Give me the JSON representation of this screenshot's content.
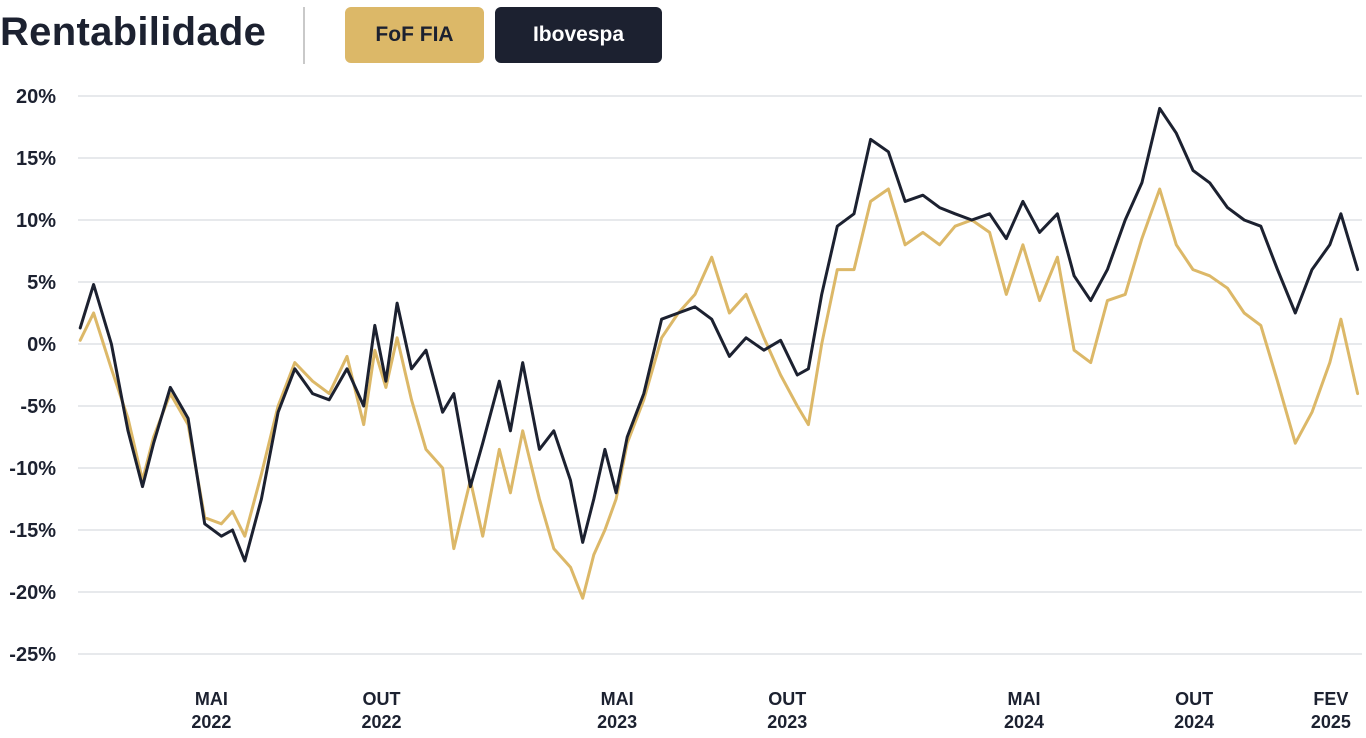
{
  "header": {
    "title": "Rentabilidade",
    "buttons": [
      {
        "label": "FoF FIA",
        "color": "#dcb868",
        "text_color": "#1c2130"
      },
      {
        "label": "Ibovespa",
        "color": "#1c2130",
        "text_color": "#ffffff"
      }
    ]
  },
  "chart_data": {
    "type": "line",
    "title": "Rentabilidade",
    "xlabel": "",
    "ylabel": "",
    "ylim": [
      -25,
      20
    ],
    "xlim": [
      "2022-01-01",
      "2025-03-01"
    ],
    "grid": true,
    "legend": "top-left",
    "y_ticks": [
      "20%",
      "15%",
      "10%",
      "5%",
      "0%",
      "-5%",
      "-10%",
      "-15%",
      "-20%",
      "-25%"
    ],
    "y_tick_values": [
      20,
      15,
      10,
      5,
      0,
      -5,
      -10,
      -15,
      -20,
      -25
    ],
    "x_ticks": [
      {
        "month": "MAI",
        "year": "2022",
        "date": "2022-05-01"
      },
      {
        "month": "OUT",
        "year": "2022",
        "date": "2022-10-01"
      },
      {
        "month": "MAI",
        "year": "2023",
        "date": "2023-05-01"
      },
      {
        "month": "OUT",
        "year": "2023",
        "date": "2023-10-01"
      },
      {
        "month": "MAI",
        "year": "2024",
        "date": "2024-05-01"
      },
      {
        "month": "OUT",
        "year": "2024",
        "date": "2024-10-01"
      },
      {
        "month": "FEV",
        "year": "2025",
        "date": "2025-02-01"
      }
    ],
    "series": [
      {
        "name": "Ibovespa",
        "color": "#1c2130",
        "points": [
          [
            "2022-01-03",
            1.3
          ],
          [
            "2022-01-15",
            4.8
          ],
          [
            "2022-01-31",
            0.0
          ],
          [
            "2022-02-15",
            -7.0
          ],
          [
            "2022-02-28",
            -11.5
          ],
          [
            "2022-03-10",
            -8.0
          ],
          [
            "2022-03-25",
            -3.5
          ],
          [
            "2022-04-10",
            -6.0
          ],
          [
            "2022-04-25",
            -14.5
          ],
          [
            "2022-05-10",
            -15.5
          ],
          [
            "2022-05-20",
            -15.0
          ],
          [
            "2022-05-31",
            -17.5
          ],
          [
            "2022-06-15",
            -12.5
          ],
          [
            "2022-06-30",
            -5.5
          ],
          [
            "2022-07-15",
            -2.0
          ],
          [
            "2022-07-31",
            -4.0
          ],
          [
            "2022-08-15",
            -4.5
          ],
          [
            "2022-08-31",
            -2.0
          ],
          [
            "2022-09-15",
            -5.0
          ],
          [
            "2022-09-25",
            1.5
          ],
          [
            "2022-10-05",
            -3.0
          ],
          [
            "2022-10-15",
            3.3
          ],
          [
            "2022-10-28",
            -2.0
          ],
          [
            "2022-11-10",
            -0.5
          ],
          [
            "2022-11-25",
            -5.5
          ],
          [
            "2022-12-05",
            -4.0
          ],
          [
            "2022-12-20",
            -11.5
          ],
          [
            "2022-12-31",
            -8.0
          ],
          [
            "2023-01-15",
            -3.0
          ],
          [
            "2023-01-25",
            -7.0
          ],
          [
            "2023-02-05",
            -1.5
          ],
          [
            "2023-02-20",
            -8.5
          ],
          [
            "2023-03-05",
            -7.0
          ],
          [
            "2023-03-20",
            -11.0
          ],
          [
            "2023-03-31",
            -16.0
          ],
          [
            "2023-04-10",
            -12.5
          ],
          [
            "2023-04-20",
            -8.5
          ],
          [
            "2023-04-30",
            -12.0
          ],
          [
            "2023-05-10",
            -7.5
          ],
          [
            "2023-05-25",
            -4.0
          ],
          [
            "2023-06-10",
            2.0
          ],
          [
            "2023-06-25",
            2.5
          ],
          [
            "2023-07-10",
            3.0
          ],
          [
            "2023-07-25",
            2.0
          ],
          [
            "2023-08-10",
            -1.0
          ],
          [
            "2023-08-25",
            0.5
          ],
          [
            "2023-09-10",
            -0.5
          ],
          [
            "2023-09-25",
            0.3
          ],
          [
            "2023-10-10",
            -2.5
          ],
          [
            "2023-10-20",
            -2.0
          ],
          [
            "2023-11-01",
            4.0
          ],
          [
            "2023-11-15",
            9.5
          ],
          [
            "2023-11-30",
            10.5
          ],
          [
            "2023-12-15",
            16.5
          ],
          [
            "2023-12-31",
            15.5
          ],
          [
            "2024-01-15",
            11.5
          ],
          [
            "2024-01-31",
            12.0
          ],
          [
            "2024-02-15",
            11.0
          ],
          [
            "2024-02-29",
            10.5
          ],
          [
            "2024-03-15",
            10.0
          ],
          [
            "2024-03-31",
            10.5
          ],
          [
            "2024-04-15",
            8.5
          ],
          [
            "2024-04-30",
            11.5
          ],
          [
            "2024-05-15",
            9.0
          ],
          [
            "2024-05-31",
            10.5
          ],
          [
            "2024-06-15",
            5.5
          ],
          [
            "2024-06-30",
            3.5
          ],
          [
            "2024-07-15",
            6.0
          ],
          [
            "2024-07-31",
            10.0
          ],
          [
            "2024-08-15",
            13.0
          ],
          [
            "2024-08-31",
            19.0
          ],
          [
            "2024-09-15",
            17.0
          ],
          [
            "2024-09-30",
            14.0
          ],
          [
            "2024-10-15",
            13.0
          ],
          [
            "2024-10-31",
            11.0
          ],
          [
            "2024-11-15",
            10.0
          ],
          [
            "2024-11-30",
            9.5
          ],
          [
            "2024-12-15",
            6.0
          ],
          [
            "2024-12-31",
            2.5
          ],
          [
            "2025-01-15",
            6.0
          ],
          [
            "2025-01-31",
            8.0
          ],
          [
            "2025-02-10",
            10.5
          ],
          [
            "2025-02-25",
            6.0
          ]
        ]
      },
      {
        "name": "FoF FIA",
        "color": "#dcb868",
        "points": [
          [
            "2022-01-03",
            0.3
          ],
          [
            "2022-01-15",
            2.5
          ],
          [
            "2022-01-31",
            -2.0
          ],
          [
            "2022-02-15",
            -6.0
          ],
          [
            "2022-02-28",
            -11.0
          ],
          [
            "2022-03-10",
            -7.5
          ],
          [
            "2022-03-25",
            -4.0
          ],
          [
            "2022-04-10",
            -6.5
          ],
          [
            "2022-04-25",
            -14.0
          ],
          [
            "2022-05-10",
            -14.5
          ],
          [
            "2022-05-20",
            -13.5
          ],
          [
            "2022-05-31",
            -15.5
          ],
          [
            "2022-06-15",
            -10.5
          ],
          [
            "2022-06-30",
            -5.0
          ],
          [
            "2022-07-15",
            -1.5
          ],
          [
            "2022-07-31",
            -3.0
          ],
          [
            "2022-08-15",
            -4.0
          ],
          [
            "2022-08-31",
            -1.0
          ],
          [
            "2022-09-15",
            -6.5
          ],
          [
            "2022-09-25",
            -0.5
          ],
          [
            "2022-10-05",
            -3.5
          ],
          [
            "2022-10-15",
            0.5
          ],
          [
            "2022-10-28",
            -4.5
          ],
          [
            "2022-11-10",
            -8.5
          ],
          [
            "2022-11-25",
            -10.0
          ],
          [
            "2022-12-05",
            -16.5
          ],
          [
            "2022-12-20",
            -11.0
          ],
          [
            "2022-12-31",
            -15.5
          ],
          [
            "2023-01-15",
            -8.5
          ],
          [
            "2023-01-25",
            -12.0
          ],
          [
            "2023-02-05",
            -7.0
          ],
          [
            "2023-02-20",
            -12.5
          ],
          [
            "2023-03-05",
            -16.5
          ],
          [
            "2023-03-20",
            -18.0
          ],
          [
            "2023-03-31",
            -20.5
          ],
          [
            "2023-04-10",
            -17.0
          ],
          [
            "2023-04-20",
            -15.0
          ],
          [
            "2023-04-30",
            -12.5
          ],
          [
            "2023-05-10",
            -8.0
          ],
          [
            "2023-05-25",
            -4.5
          ],
          [
            "2023-06-10",
            0.5
          ],
          [
            "2023-06-25",
            2.5
          ],
          [
            "2023-07-10",
            4.0
          ],
          [
            "2023-07-25",
            7.0
          ],
          [
            "2023-08-10",
            2.5
          ],
          [
            "2023-08-25",
            4.0
          ],
          [
            "2023-09-10",
            0.5
          ],
          [
            "2023-09-25",
            -2.5
          ],
          [
            "2023-10-10",
            -5.0
          ],
          [
            "2023-10-20",
            -6.5
          ],
          [
            "2023-11-01",
            0.0
          ],
          [
            "2023-11-15",
            6.0
          ],
          [
            "2023-11-30",
            6.0
          ],
          [
            "2023-12-15",
            11.5
          ],
          [
            "2023-12-31",
            12.5
          ],
          [
            "2024-01-15",
            8.0
          ],
          [
            "2024-01-31",
            9.0
          ],
          [
            "2024-02-15",
            8.0
          ],
          [
            "2024-02-29",
            9.5
          ],
          [
            "2024-03-15",
            10.0
          ],
          [
            "2024-03-31",
            9.0
          ],
          [
            "2024-04-15",
            4.0
          ],
          [
            "2024-04-30",
            8.0
          ],
          [
            "2024-05-15",
            3.5
          ],
          [
            "2024-05-31",
            7.0
          ],
          [
            "2024-06-15",
            -0.5
          ],
          [
            "2024-06-30",
            -1.5
          ],
          [
            "2024-07-15",
            3.5
          ],
          [
            "2024-07-31",
            4.0
          ],
          [
            "2024-08-15",
            8.5
          ],
          [
            "2024-08-31",
            12.5
          ],
          [
            "2024-09-15",
            8.0
          ],
          [
            "2024-09-30",
            6.0
          ],
          [
            "2024-10-15",
            5.5
          ],
          [
            "2024-10-31",
            4.5
          ],
          [
            "2024-11-15",
            2.5
          ],
          [
            "2024-11-30",
            1.5
          ],
          [
            "2024-12-15",
            -3.0
          ],
          [
            "2024-12-31",
            -8.0
          ],
          [
            "2025-01-15",
            -5.5
          ],
          [
            "2025-01-31",
            -1.5
          ],
          [
            "2025-02-10",
            2.0
          ],
          [
            "2025-02-25",
            -4.0
          ]
        ]
      }
    ]
  }
}
